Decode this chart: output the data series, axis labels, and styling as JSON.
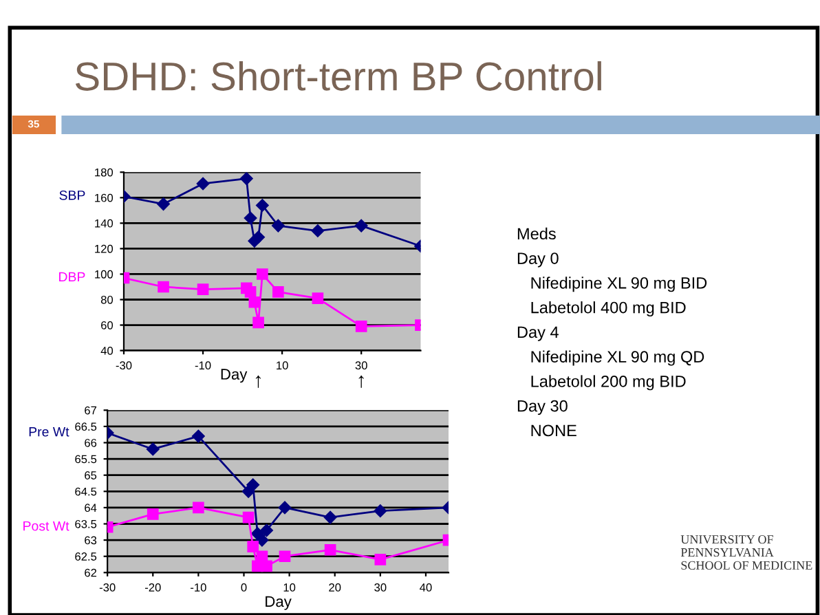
{
  "chart_data": [
    {
      "type": "line",
      "title": "SDHD: Short-term BP Control",
      "xlabel": "Day",
      "annotations": [
        "35",
        "↑",
        "↑"
      ],
      "xlim": [
        -30,
        45
      ],
      "xticks": [
        -30,
        -10,
        10,
        30
      ],
      "ylim": [
        40,
        180
      ],
      "yticks": [
        40,
        60,
        80,
        100,
        120,
        140,
        160,
        180
      ],
      "grid": "y",
      "legend": "left",
      "series": [
        {
          "name": "SBP",
          "color": "#000080",
          "marker": "diamond",
          "x": [
            -30,
            -20,
            -10,
            1,
            2,
            3,
            4,
            5,
            9,
            19,
            30,
            45
          ],
          "values": [
            161,
            155,
            171,
            175,
            144,
            126,
            129,
            154,
            138,
            134,
            138,
            122
          ]
        },
        {
          "name": "DBP",
          "color": "#ff00ff",
          "marker": "square",
          "x": [
            -30,
            -20,
            -10,
            1,
            2,
            3,
            4,
            5,
            9,
            19,
            30,
            45
          ],
          "values": [
            97,
            90,
            88,
            89,
            86,
            78,
            62,
            100,
            86,
            81,
            59,
            60
          ]
        }
      ]
    },
    {
      "type": "line",
      "xlabel": "Day",
      "annotations": [
        "UNIVERSITY OF\nPENNSYLVANIA\nSCHOOL OF MEDICINE"
      ],
      "xlim": [
        -30,
        45
      ],
      "xticks": [
        -30,
        -20,
        -10,
        0,
        10,
        20,
        30,
        40
      ],
      "ylim": [
        62,
        67
      ],
      "yticks": [
        62,
        62.5,
        63,
        63.5,
        64,
        64.5,
        65,
        65.5,
        66,
        66.5,
        67
      ],
      "grid": "y",
      "legend": "left",
      "series": [
        {
          "name": "Pre Wt",
          "color": "#000080",
          "marker": "diamond",
          "x": [
            -30,
            -20,
            -10,
            1,
            2,
            3,
            4,
            5,
            9,
            19,
            30,
            45
          ],
          "values": [
            66.3,
            65.8,
            66.2,
            64.5,
            64.7,
            63.2,
            63.0,
            63.3,
            64.0,
            63.7,
            63.9,
            64.0
          ]
        },
        {
          "name": "Post Wt",
          "color": "#ff00ff",
          "marker": "square",
          "x": [
            -30,
            -20,
            -10,
            1,
            2,
            3,
            4,
            5,
            9,
            19,
            30,
            45
          ],
          "values": [
            63.4,
            63.8,
            64.0,
            63.7,
            62.8,
            62.2,
            62.5,
            62.2,
            62.5,
            62.7,
            62.4,
            63.0
          ]
        }
      ]
    },
    {
      "type": "other",
      "annotations": [
        "Meds",
        "Day 0",
        "   Nifedipine XL 90 mg BID",
        "   Labetolol 400 mg BID",
        "Day 4",
        "   Nifedipine XL 90 mg QD",
        "   Labetolol 200 mg BID",
        "Day 30",
        "   NONE"
      ]
    }
  ]
}
